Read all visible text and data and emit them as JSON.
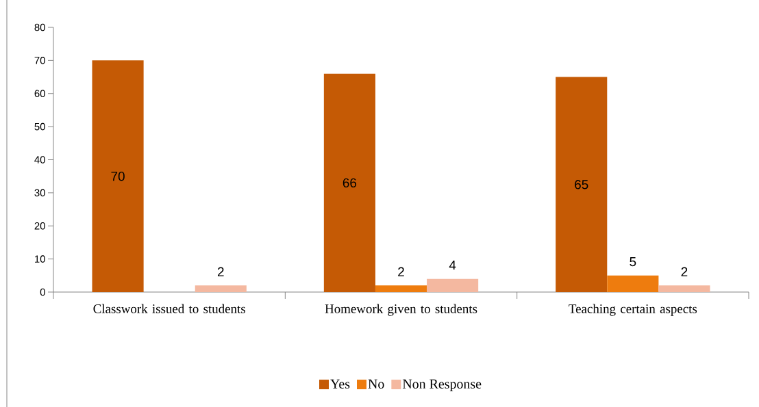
{
  "chart_data": {
    "type": "bar",
    "categories": [
      "Classwork issued to students",
      "Homework given to students",
      "Teaching certain aspects"
    ],
    "series": [
      {
        "name": "Yes",
        "color": "#c55a05",
        "values": [
          70,
          66,
          65
        ]
      },
      {
        "name": "No",
        "color": "#ee7c0e",
        "values": [
          null,
          2,
          5
        ]
      },
      {
        "name": "Non Response",
        "color": "#f4b8a0",
        "values": [
          2,
          4,
          2
        ]
      }
    ],
    "ylim": [
      0,
      80
    ],
    "yticks": [
      0,
      10,
      20,
      30,
      40,
      50,
      60,
      70,
      80
    ],
    "data_labels": true,
    "grid": false,
    "legend": "bottom"
  }
}
